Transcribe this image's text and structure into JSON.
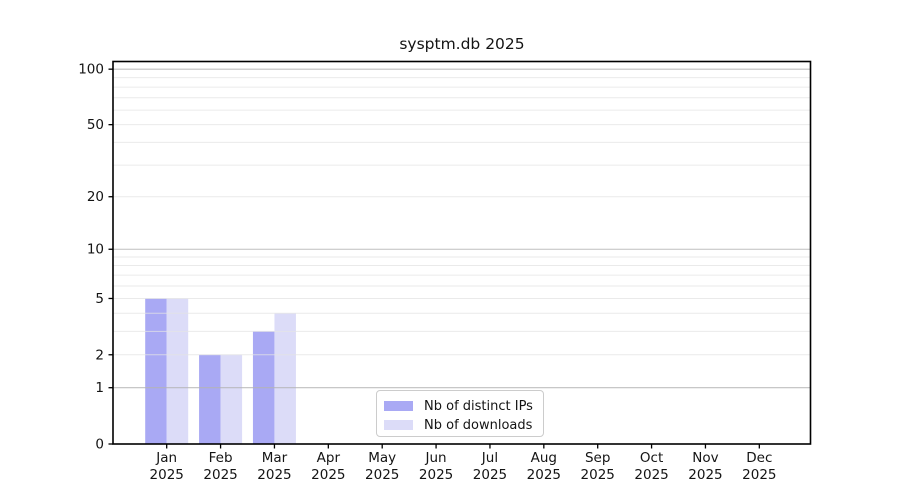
{
  "chart_data": {
    "type": "bar",
    "title": "sysptm.db 2025",
    "months": [
      "Jan",
      "Feb",
      "Mar",
      "Apr",
      "May",
      "Jun",
      "Jul",
      "Aug",
      "Sep",
      "Oct",
      "Nov",
      "Dec"
    ],
    "year": "2025",
    "series": [
      {
        "name": "Nb of distinct IPs",
        "color": "#a9a9f4",
        "values": [
          5,
          2,
          3,
          0,
          0,
          0,
          0,
          0,
          0,
          0,
          0,
          0
        ]
      },
      {
        "name": "Nb of downloads",
        "color": "#dcdcf8",
        "values": [
          5,
          2,
          4,
          0,
          0,
          0,
          0,
          0,
          0,
          0,
          0,
          0
        ]
      }
    ],
    "yscale": "log1p",
    "ylim": [
      0,
      110
    ],
    "y_tick_labels": [
      0,
      1,
      2,
      5,
      10,
      20,
      50,
      100
    ],
    "y_major_gridlines": [
      1,
      10,
      100
    ],
    "y_minor_gridlines": [
      2,
      3,
      4,
      5,
      6,
      7,
      8,
      9,
      20,
      30,
      40,
      50,
      60,
      70,
      80,
      90
    ],
    "grid": true,
    "legend_position": "lower center",
    "colors": {
      "major_grid": "#b4b4b4",
      "minor_grid": "#e4e4e4",
      "axis": "#000000",
      "text": "#141414",
      "background": "#ffffff"
    }
  }
}
